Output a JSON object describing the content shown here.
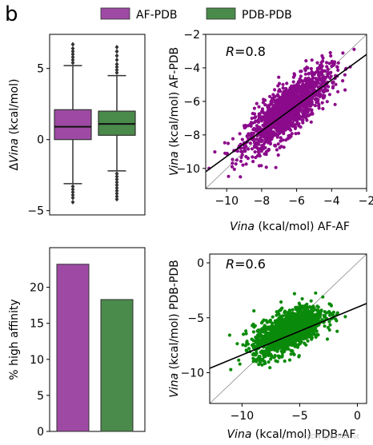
{
  "panel_label": "b",
  "legend": {
    "items": [
      {
        "label": "AF-PDB",
        "color": "#9e4aa4"
      },
      {
        "label": "PDB-PDB",
        "color": "#4a8a4a"
      }
    ]
  },
  "watermark": "CSDN @BioAIPilot",
  "chart_data": [
    {
      "id": "boxplot",
      "type": "box",
      "ylabel": "ΔVina  (kcal/mol)",
      "ylabel_italic_part": "Vina",
      "ylim": [
        -5.3,
        7.4
      ],
      "yticks": [
        -5,
        0,
        5
      ],
      "series": [
        {
          "name": "AF-PDB",
          "color": "#9e4aa4",
          "q1": 0.0,
          "median": 0.9,
          "q3": 2.1,
          "whisker_low": -3.1,
          "whisker_high": 5.2,
          "outliers_low": [
            -3.3,
            -3.5,
            -3.7,
            -3.9,
            -4.1,
            -4.4
          ],
          "outliers_high": [
            5.4,
            5.6,
            5.8,
            6.0,
            6.2,
            6.4,
            6.7
          ]
        },
        {
          "name": "PDB-PDB",
          "color": "#4a8a4a",
          "q1": 0.3,
          "median": 1.1,
          "q3": 2.0,
          "whisker_low": -2.2,
          "whisker_high": 4.5,
          "outliers_low": [
            -2.4,
            -2.6,
            -2.8,
            -3.0,
            -3.2,
            -3.4,
            -3.6,
            -3.8,
            -4.0,
            -4.2
          ],
          "outliers_high": [
            4.7,
            4.9,
            5.1,
            5.3,
            5.6,
            5.9,
            6.2,
            6.5
          ]
        }
      ]
    },
    {
      "id": "scatter_af",
      "type": "scatter",
      "annotation": "=0.8",
      "annotation_symbol": "R",
      "xlabel_italic": "Vina",
      "xlabel_rest": " (kcal/mol)   AF-AF",
      "ylabel_italic": "Vina",
      "ylabel_rest": " (kcal/mol)   AF-PDB",
      "xlim": [
        -11.2,
        -2.0
      ],
      "ylim": [
        -11.2,
        -2.0
      ],
      "xticks": [
        -10,
        -8,
        -6,
        -4,
        -2
      ],
      "yticks": [
        -10,
        -8,
        -6,
        -4,
        -2
      ],
      "color": "#8b0a8b",
      "n_points": 1500,
      "center": [
        -6.5,
        -6.5
      ],
      "sd": [
        1.2,
        1.2
      ],
      "correlation": 0.8,
      "fit_line": [
        [
          -11.2,
          -10.2
        ],
        [
          -2.0,
          -3.2
        ]
      ]
    },
    {
      "id": "bar",
      "type": "bar",
      "ylabel": "% high affinity",
      "categories": [
        "AF-PDB",
        "PDB-PDB"
      ],
      "values": [
        23.2,
        18.3
      ],
      "colors": [
        "#9e4aa4",
        "#4a8a4a"
      ],
      "ylim": [
        0,
        25.5
      ],
      "yticks": [
        0,
        5,
        10,
        15,
        20
      ]
    },
    {
      "id": "scatter_pdb",
      "type": "scatter",
      "annotation": "=0.6",
      "annotation_symbol": "R",
      "xlabel_italic": "Vina",
      "xlabel_rest": " (kcal/mol)   PDB-AF",
      "ylabel_italic": "Vina",
      "ylabel_rest": " (kcal/mol)   PDB-PDB",
      "xlim": [
        -12.8,
        0.8
      ],
      "ylim": [
        -12.8,
        0.8
      ],
      "xticks": [
        -10,
        -5,
        0
      ],
      "yticks": [
        -10,
        -5,
        0
      ],
      "color": "#0a8a0a",
      "n_points": 1400,
      "center": [
        -6.0,
        -6.2
      ],
      "sd": [
        1.5,
        1.1
      ],
      "correlation": 0.6,
      "fit_line": [
        [
          -12.8,
          -9.6
        ],
        [
          0.8,
          -3.7
        ]
      ]
    }
  ]
}
